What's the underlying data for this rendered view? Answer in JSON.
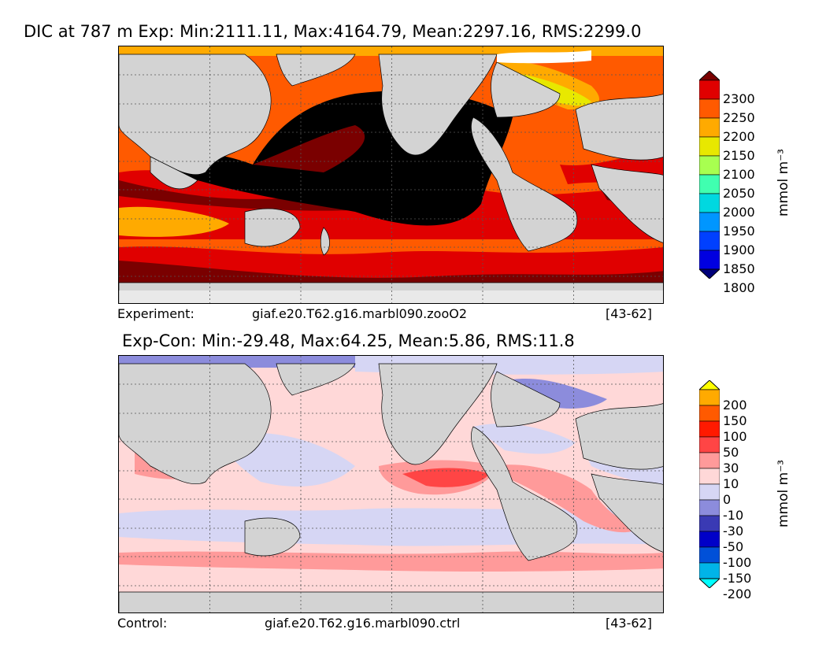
{
  "top": {
    "title": "DIC at 787 m Exp: Min:2111.11, Max:4164.79, Mean:2297.16, RMS:2299.0",
    "footer_label": "Experiment:",
    "footer_case": "giaf.e20.T62.g16.marbl090.zooO2",
    "footer_years": "[43-62]",
    "units": "mmol m⁻³",
    "colorbar_levels": [
      "2300",
      "2250",
      "2200",
      "2150",
      "2100",
      "2050",
      "2000",
      "1950",
      "1900",
      "1850",
      "1800"
    ],
    "colorbar_colors": [
      "#7a0000",
      "#e00000",
      "#ff5a00",
      "#ffaa00",
      "#e8e800",
      "#a8ff50",
      "#40ffb0",
      "#00d8e0",
      "#0096ff",
      "#0040ff",
      "#0000e0",
      "#00007a"
    ]
  },
  "bottom": {
    "title": "Exp-Con: Min:-29.48, Max:64.25, Mean:5.86, RMS:11.8",
    "footer_label": "Control:",
    "footer_case": "giaf.e20.T62.g16.marbl090.ctrl",
    "footer_years": "[43-62]",
    "units": "mmol m⁻³",
    "colorbar_levels": [
      "200",
      "150",
      "100",
      "50",
      "30",
      "10",
      "0",
      "-10",
      "-30",
      "-50",
      "-100",
      "-150",
      "-200"
    ],
    "colorbar_colors": [
      "#ffff00",
      "#ffaa00",
      "#ff5a00",
      "#ff1a00",
      "#ff4545",
      "#ff9a9a",
      "#ffd8d8",
      "#d6d6f4",
      "#8c8cdc",
      "#3a3ab4",
      "#0000c8",
      "#0050d8",
      "#00b4e8",
      "#00ffff"
    ]
  },
  "colors": {
    "land": "#d3d3d3",
    "ice": "#ffffff",
    "grid": "#555555"
  }
}
